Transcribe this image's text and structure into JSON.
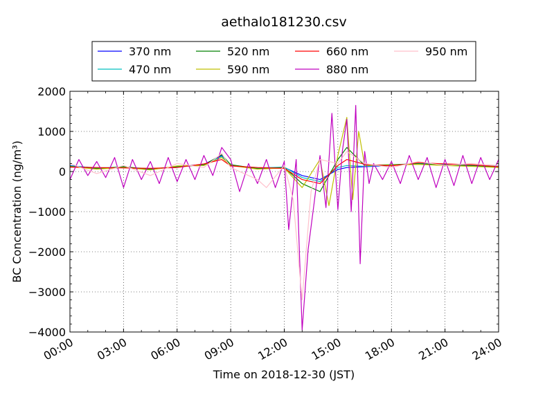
{
  "chart_data": {
    "type": "line",
    "title": "aethalo181230.csv",
    "xlabel": "Time on 2018-12-30 (JST)",
    "ylabel": "BC Concentration (ng/m³)",
    "xlim": [
      "00:00",
      "24:00"
    ],
    "ylim": [
      -4000,
      2000
    ],
    "x_ticks": [
      "00:00",
      "03:00",
      "06:00",
      "09:00",
      "12:00",
      "15:00",
      "18:00",
      "21:00",
      "24:00"
    ],
    "y_ticks": [
      2000,
      1000,
      0,
      -1000,
      -2000,
      -3000,
      -4000
    ],
    "y_tick_labels": [
      "2000",
      "1000",
      "0",
      "−1000",
      "−2000",
      "−3000",
      "−4000"
    ],
    "grid": true,
    "legend_position": "top-center",
    "series": [
      {
        "name": "370 nm",
        "color": "#0000ff",
        "x": [
          "00:00",
          "01:30",
          "03:00",
          "04:30",
          "06:00",
          "07:30",
          "08:30",
          "09:00",
          "10:30",
          "12:00",
          "13:00",
          "14:00",
          "15:00",
          "15:30",
          "16:30",
          "18:00",
          "19:30",
          "21:00",
          "22:30",
          "24:00"
        ],
        "values": [
          150,
          80,
          100,
          60,
          120,
          180,
          400,
          150,
          80,
          100,
          -100,
          -200,
          50,
          100,
          120,
          150,
          200,
          180,
          150,
          120
        ]
      },
      {
        "name": "470 nm",
        "color": "#00bfbf",
        "x": [
          "00:00",
          "01:30",
          "03:00",
          "04:30",
          "06:00",
          "07:30",
          "08:30",
          "09:00",
          "10:30",
          "12:00",
          "13:00",
          "14:00",
          "15:00",
          "15:30",
          "16:30",
          "18:00",
          "19:30",
          "21:00",
          "22:30",
          "24:00"
        ],
        "values": [
          140,
          90,
          110,
          70,
          110,
          170,
          380,
          160,
          90,
          110,
          -150,
          -250,
          100,
          150,
          130,
          160,
          210,
          170,
          160,
          130
        ]
      },
      {
        "name": "520 nm",
        "color": "#008000",
        "x": [
          "00:00",
          "01:30",
          "03:00",
          "04:30",
          "06:00",
          "07:30",
          "08:30",
          "09:00",
          "10:30",
          "12:00",
          "13:00",
          "14:00",
          "15:00",
          "15:30",
          "16:30",
          "18:00",
          "19:30",
          "21:00",
          "22:30",
          "24:00"
        ],
        "values": [
          130,
          70,
          120,
          50,
          130,
          160,
          420,
          170,
          70,
          100,
          -300,
          -500,
          300,
          600,
          150,
          170,
          190,
          160,
          140,
          110
        ]
      },
      {
        "name": "590 nm",
        "color": "#bfbf00",
        "x": [
          "00:00",
          "01:30",
          "03:00",
          "04:30",
          "06:00",
          "07:30",
          "08:30",
          "09:00",
          "10:30",
          "12:00",
          "13:00",
          "14:00",
          "14:30",
          "15:00",
          "15:30",
          "15:50",
          "16:10",
          "16:30",
          "18:00",
          "19:30",
          "21:00",
          "22:30",
          "24:00"
        ],
        "values": [
          120,
          60,
          100,
          40,
          140,
          150,
          350,
          150,
          60,
          90,
          -400,
          300,
          -850,
          400,
          1350,
          -700,
          1000,
          150,
          160,
          180,
          150,
          130,
          100
        ]
      },
      {
        "name": "660 nm",
        "color": "#ff0000",
        "x": [
          "00:00",
          "01:30",
          "03:00",
          "04:30",
          "06:00",
          "07:30",
          "08:30",
          "09:00",
          "10:30",
          "12:00",
          "13:00",
          "14:00",
          "15:00",
          "15:30",
          "16:30",
          "18:00",
          "19:30",
          "21:00",
          "22:30",
          "24:00"
        ],
        "values": [
          110,
          100,
          90,
          80,
          100,
          190,
          300,
          140,
          100,
          80,
          -200,
          -300,
          150,
          300,
          180,
          140,
          220,
          190,
          170,
          120
        ]
      },
      {
        "name": "880 nm",
        "color": "#bf00bf",
        "x": [
          "00:00",
          "00:30",
          "01:00",
          "01:30",
          "02:00",
          "02:30",
          "03:00",
          "03:30",
          "04:00",
          "04:30",
          "05:00",
          "05:30",
          "06:00",
          "06:30",
          "07:00",
          "07:30",
          "08:00",
          "08:30",
          "09:00",
          "09:30",
          "10:00",
          "10:30",
          "11:00",
          "11:30",
          "12:00",
          "12:15",
          "12:40",
          "13:00",
          "13:20",
          "13:40",
          "14:00",
          "14:20",
          "14:40",
          "15:00",
          "15:15",
          "15:30",
          "15:45",
          "16:00",
          "16:15",
          "16:30",
          "16:45",
          "17:00",
          "17:30",
          "18:00",
          "18:30",
          "19:00",
          "19:30",
          "20:00",
          "20:30",
          "21:00",
          "21:30",
          "22:00",
          "22:30",
          "23:00",
          "23:30",
          "24:00"
        ],
        "values": [
          -200,
          300,
          -100,
          250,
          -150,
          350,
          -400,
          300,
          -200,
          250,
          -300,
          350,
          -250,
          300,
          -200,
          400,
          -100,
          600,
          300,
          -500,
          200,
          -300,
          300,
          -400,
          250,
          -1450,
          300,
          -3950,
          -1950,
          -800,
          400,
          -900,
          1450,
          -950,
          500,
          1300,
          -1000,
          1650,
          -2300,
          500,
          -300,
          200,
          -200,
          250,
          -300,
          400,
          -200,
          350,
          -400,
          300,
          -350,
          400,
          -300,
          350,
          -200,
          300
        ]
      },
      {
        "name": "950 nm",
        "color": "#ffc0cb",
        "x": [
          "00:00",
          "01:30",
          "03:00",
          "04:30",
          "06:00",
          "07:30",
          "08:30",
          "09:00",
          "10:30",
          "11:00",
          "12:00",
          "12:30",
          "13:00",
          "13:30",
          "14:00",
          "15:00",
          "15:30",
          "16:30",
          "18:00",
          "19:30",
          "21:00",
          "22:30",
          "24:00"
        ],
        "values": [
          200,
          -50,
          150,
          -100,
          200,
          100,
          450,
          100,
          -200,
          -400,
          150,
          -700,
          -3200,
          -500,
          300,
          200,
          500,
          200,
          100,
          250,
          150,
          200,
          150
        ]
      }
    ]
  }
}
